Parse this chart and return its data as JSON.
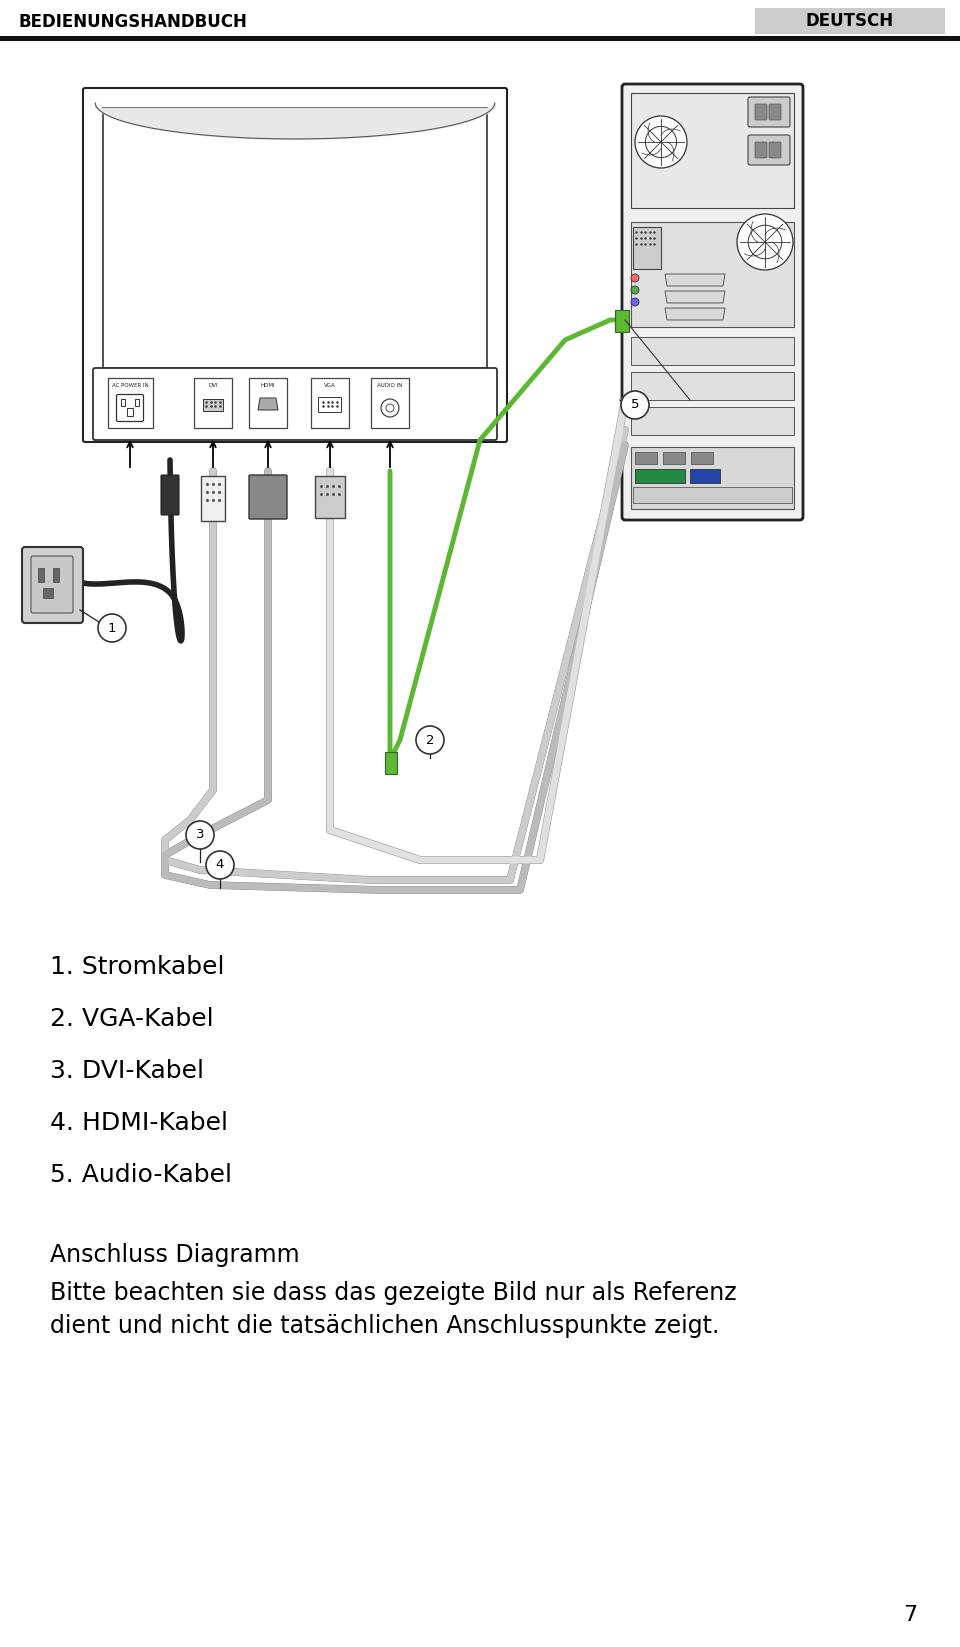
{
  "header_left": "BEDIENUNGSHANDBUCH",
  "header_right": "DEUTSCH",
  "header_bg": "#cccccc",
  "header_bar_color": "#111111",
  "list_items": [
    "1. Stromkabel",
    "2. VGA-Kabel",
    "3. DVI-Kabel",
    "4. HDMI-Kabel",
    "5. Audio-Kabel"
  ],
  "section_title": "Anschluss Diagramm",
  "description": "Bitte beachten sie dass das gezeigte Bild nur als Referenz\ndient und nicht die tatsächlichen Anschlusspunkte zeigt.",
  "page_number": "7",
  "bg_color": "#ffffff",
  "text_color": "#000000",
  "green_cable": "#5ab832",
  "black_cable": "#222222",
  "gray_cable": "#aaaaaa",
  "white_cable": "#e8e8e8"
}
